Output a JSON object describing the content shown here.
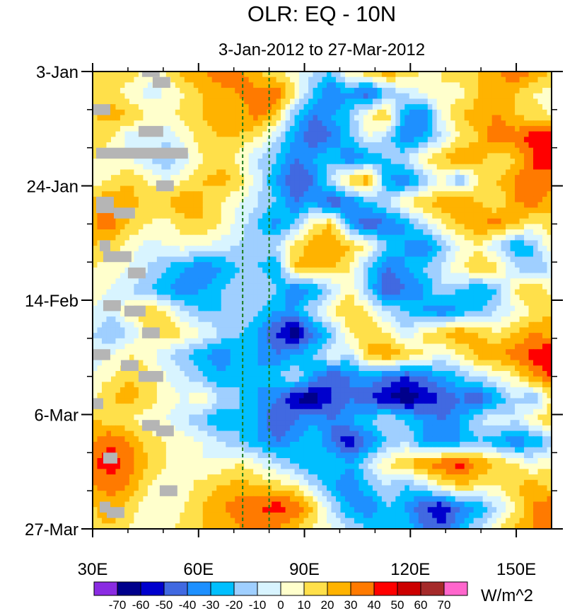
{
  "chart_data": {
    "type": "heatmap",
    "title": "OLR: EQ - 10N",
    "subtitle": "3-Jan-2012 to 27-Mar-2012",
    "xlabel": "",
    "ylabel": "",
    "x_range": [
      30,
      160
    ],
    "y_range_days": [
      0,
      84
    ],
    "x_ticks": [
      {
        "value": 30,
        "label": "30E"
      },
      {
        "value": 60,
        "label": "60E"
      },
      {
        "value": 90,
        "label": "90E"
      },
      {
        "value": 120,
        "label": "120E"
      },
      {
        "value": 150,
        "label": "150E"
      }
    ],
    "y_ticks": [
      {
        "day": 0,
        "label": "3-Jan"
      },
      {
        "day": 21,
        "label": "24-Jan"
      },
      {
        "day": 42,
        "label": "14-Feb"
      },
      {
        "day": 63,
        "label": "6-Mar"
      },
      {
        "day": 84,
        "label": "27-Mar"
      }
    ],
    "reference_lines_lon": [
      72.5,
      80
    ],
    "colorbar": {
      "units": "W/m^2",
      "levels": [
        "-70",
        "-60",
        "-50",
        "-40",
        "-30",
        "-20",
        "-10",
        "0",
        "10",
        "20",
        "30",
        "40",
        "50",
        "60",
        "70"
      ],
      "colors": [
        "#8a2be2",
        "#00008b",
        "#0000cd",
        "#4169e1",
        "#1e90ff",
        "#00bfff",
        "#9fcfff",
        "#d8f4ff",
        "#ffffcc",
        "#ffe04a",
        "#ffb300",
        "#ff7a00",
        "#ff0000",
        "#cc0000",
        "#a52a2a",
        "#ff66cc"
      ]
    },
    "anomaly_rows": [
      {
        "day": 0,
        "values": [
          15,
          20,
          15,
          5,
          10,
          25,
          30,
          40,
          35,
          20,
          10,
          5,
          -10,
          -20,
          10,
          20,
          30,
          20,
          10,
          10,
          15,
          20,
          25,
          40,
          30,
          20
        ]
      },
      {
        "day": 4,
        "values": [
          10,
          15,
          5,
          -5,
          0,
          10,
          20,
          25,
          30,
          35,
          40,
          10,
          -20,
          -40,
          -30,
          -50,
          -20,
          -10,
          0,
          10,
          5,
          20,
          30,
          20,
          10,
          5
        ]
      },
      {
        "day": 8,
        "values": [
          20,
          25,
          20,
          10,
          5,
          15,
          20,
          30,
          25,
          35,
          20,
          -20,
          -40,
          -30,
          -20,
          10,
          20,
          -30,
          -40,
          0,
          20,
          25,
          30,
          20,
          15,
          10
        ]
      },
      {
        "day": 12,
        "values": [
          15,
          10,
          -5,
          0,
          -10,
          5,
          15,
          20,
          20,
          10,
          -10,
          -30,
          -50,
          -40,
          -20,
          0,
          -10,
          -40,
          -30,
          -10,
          10,
          20,
          40,
          35,
          45,
          50
        ]
      },
      {
        "day": 16,
        "values": [
          10,
          5,
          0,
          -10,
          -20,
          -5,
          10,
          15,
          5,
          -10,
          -20,
          -40,
          -30,
          -20,
          -40,
          -30,
          -20,
          -10,
          10,
          20,
          30,
          25,
          10,
          20,
          40,
          45
        ]
      },
      {
        "day": 20,
        "values": [
          5,
          10,
          20,
          10,
          0,
          10,
          20,
          25,
          15,
          -5,
          -30,
          -50,
          -40,
          -10,
          20,
          30,
          -30,
          -40,
          -20,
          0,
          -20,
          10,
          20,
          30,
          40,
          35
        ]
      },
      {
        "day": 24,
        "values": [
          25,
          30,
          25,
          15,
          20,
          30,
          20,
          10,
          0,
          -10,
          -20,
          -40,
          -30,
          -50,
          -40,
          -20,
          -10,
          10,
          20,
          25,
          30,
          20,
          10,
          30,
          35,
          25
        ]
      },
      {
        "day": 28,
        "values": [
          30,
          35,
          20,
          10,
          5,
          15,
          20,
          10,
          -5,
          -20,
          -35,
          -20,
          10,
          20,
          -30,
          -50,
          -40,
          -30,
          -10,
          10,
          20,
          30,
          35,
          20,
          10,
          15
        ]
      },
      {
        "day": 32,
        "values": [
          20,
          15,
          5,
          -5,
          0,
          5,
          0,
          -5,
          -10,
          -15,
          -10,
          15,
          25,
          30,
          20,
          10,
          -20,
          -30,
          -40,
          -20,
          0,
          10,
          -10,
          -30,
          -20,
          10
        ]
      },
      {
        "day": 36,
        "values": [
          10,
          5,
          0,
          -10,
          -20,
          -30,
          -40,
          -30,
          -20,
          -20,
          -30,
          20,
          25,
          20,
          10,
          -20,
          -40,
          -30,
          -20,
          -10,
          10,
          20,
          15,
          -10,
          -20,
          -10
        ]
      },
      {
        "day": 40,
        "values": [
          5,
          0,
          -10,
          -20,
          -30,
          -40,
          -30,
          -20,
          -10,
          -10,
          -20,
          -40,
          -30,
          -10,
          10,
          -20,
          -50,
          -40,
          -30,
          -10,
          -20,
          -30,
          -20,
          10,
          20,
          5
        ]
      },
      {
        "day": 44,
        "values": [
          0,
          -10,
          10,
          20,
          10,
          -10,
          -20,
          -20,
          -10,
          -20,
          -30,
          -30,
          -10,
          10,
          20,
          10,
          -10,
          -20,
          -30,
          -40,
          -30,
          -20,
          -10,
          0,
          10,
          20
        ]
      },
      {
        "day": 48,
        "values": [
          -10,
          -20,
          -10,
          10,
          20,
          10,
          0,
          -10,
          -20,
          -30,
          -50,
          -70,
          -40,
          -20,
          10,
          20,
          10,
          -10,
          10,
          20,
          30,
          20,
          10,
          20,
          30,
          25
        ]
      },
      {
        "day": 52,
        "values": [
          -5,
          0,
          10,
          5,
          -10,
          -20,
          -30,
          -40,
          -20,
          -30,
          -40,
          -30,
          -20,
          0,
          -10,
          20,
          30,
          20,
          10,
          0,
          10,
          25,
          30,
          35,
          45,
          50
        ]
      },
      {
        "day": 56,
        "values": [
          0,
          10,
          20,
          15,
          0,
          -10,
          -20,
          -30,
          -20,
          -30,
          -20,
          -10,
          -30,
          -50,
          -40,
          -30,
          -40,
          -50,
          -40,
          -30,
          -20,
          -10,
          0,
          10,
          30,
          40
        ]
      },
      {
        "day": 60,
        "values": [
          10,
          20,
          25,
          15,
          5,
          0,
          10,
          -10,
          -20,
          -30,
          -40,
          -60,
          -70,
          -50,
          -40,
          -50,
          -60,
          -70,
          -60,
          -50,
          -40,
          -50,
          -30,
          -10,
          -20,
          10
        ]
      },
      {
        "day": 64,
        "values": [
          20,
          15,
          10,
          5,
          0,
          -10,
          -20,
          -30,
          -20,
          -30,
          -50,
          -40,
          -30,
          -40,
          -30,
          -20,
          -10,
          -20,
          -30,
          -40,
          -30,
          -10,
          0,
          -10,
          10,
          20
        ]
      },
      {
        "day": 68,
        "values": [
          30,
          40,
          30,
          15,
          10,
          5,
          0,
          -10,
          -20,
          -30,
          -40,
          -30,
          -20,
          -40,
          -60,
          -40,
          -20,
          -10,
          -30,
          -40,
          -30,
          -20,
          -30,
          -40,
          -30,
          -20
        ]
      },
      {
        "day": 72,
        "values": [
          40,
          45,
          35,
          20,
          10,
          5,
          0,
          5,
          10,
          0,
          -10,
          -20,
          -30,
          -20,
          -30,
          -10,
          10,
          20,
          30,
          40,
          45,
          30,
          20,
          10,
          0,
          10
        ]
      },
      {
        "day": 76,
        "values": [
          30,
          35,
          30,
          10,
          0,
          5,
          15,
          20,
          25,
          20,
          15,
          10,
          -10,
          -30,
          -40,
          -20,
          -10,
          -20,
          -10,
          10,
          20,
          15,
          10,
          20,
          25,
          15
        ]
      },
      {
        "day": 80,
        "values": [
          20,
          25,
          15,
          5,
          0,
          10,
          20,
          30,
          35,
          40,
          45,
          40,
          20,
          -10,
          -30,
          -40,
          -20,
          -30,
          -50,
          -60,
          -40,
          -30,
          -10,
          10,
          30,
          40
        ]
      },
      {
        "day": 84,
        "values": [
          15,
          20,
          10,
          0,
          5,
          15,
          20,
          25,
          30,
          35,
          30,
          20,
          10,
          0,
          -10,
          -20,
          -30,
          -20,
          -40,
          -50,
          -30,
          -10,
          10,
          20,
          30,
          35
        ]
      }
    ],
    "row_lon_step": 5.2
  }
}
